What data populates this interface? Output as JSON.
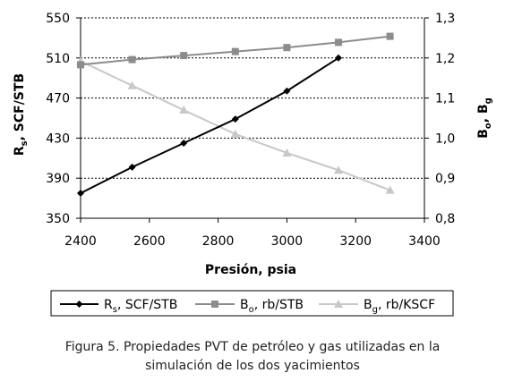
{
  "chart_data": {
    "type": "line",
    "xlabel": "Presión, psia",
    "ylabel_left": "Rs, SCF/STB",
    "ylabel_right": "Bo, Bg",
    "xlim": [
      2400,
      3400
    ],
    "ylim_left": [
      350,
      550
    ],
    "ylim_right": [
      0.8,
      1.3
    ],
    "x_ticks": [
      "2400",
      "2600",
      "2800",
      "3000",
      "3200",
      "3400"
    ],
    "y_left_ticks": [
      "350",
      "390",
      "430",
      "470",
      "510",
      "550"
    ],
    "y_right_ticks": [
      "0,8",
      "0,9",
      "1,0",
      "1,1",
      "1,2",
      "1,3"
    ],
    "grid": "horizontal dashed",
    "legend_position": "bottom",
    "series": [
      {
        "name": "Rs, SCF/STB",
        "axis": "left",
        "color": "#000000",
        "marker": "diamond",
        "x": [
          2400,
          2550,
          2700,
          2850,
          3000,
          3150
        ],
        "y": [
          375,
          401,
          425,
          449,
          477,
          510
        ]
      },
      {
        "name": "Bo, rb/STB",
        "axis": "right",
        "color": "#8c8c8c",
        "marker": "square",
        "x": [
          2400,
          2550,
          2700,
          2850,
          3000,
          3150,
          3300
        ],
        "y": [
          1.183,
          1.196,
          1.206,
          1.216,
          1.226,
          1.239,
          1.254
        ]
      },
      {
        "name": "Bg, rb/KSCF",
        "axis": "right",
        "color": "#c8c8c8",
        "marker": "triangle",
        "x": [
          2400,
          2550,
          2700,
          2850,
          3000,
          3150,
          3300
        ],
        "y": [
          1.192,
          1.131,
          1.07,
          1.01,
          0.963,
          0.92,
          0.87
        ]
      }
    ]
  },
  "legend": {
    "rs_main": "R",
    "rs_sub": "s",
    "rs_rest": ", SCF/STB",
    "bo_main": "B",
    "bo_sub": "o",
    "bo_rest": ", rb/STB",
    "bg_main": "B",
    "bg_sub": "g",
    "bg_rest": ", rb/KSCF"
  },
  "axis_titles": {
    "left_main": "R",
    "left_sub": "s",
    "left_rest": ", SCF/STB",
    "right_a": "B",
    "right_a_sub": "o",
    "right_sep": ", ",
    "right_b": "B",
    "right_b_sub": "g",
    "x": "Presión, psia"
  },
  "caption": {
    "line1": "Figura 5. Propiedades PVT de petróleo y gas utilizadas en la",
    "line2": "simulación de los dos yacimientos"
  }
}
